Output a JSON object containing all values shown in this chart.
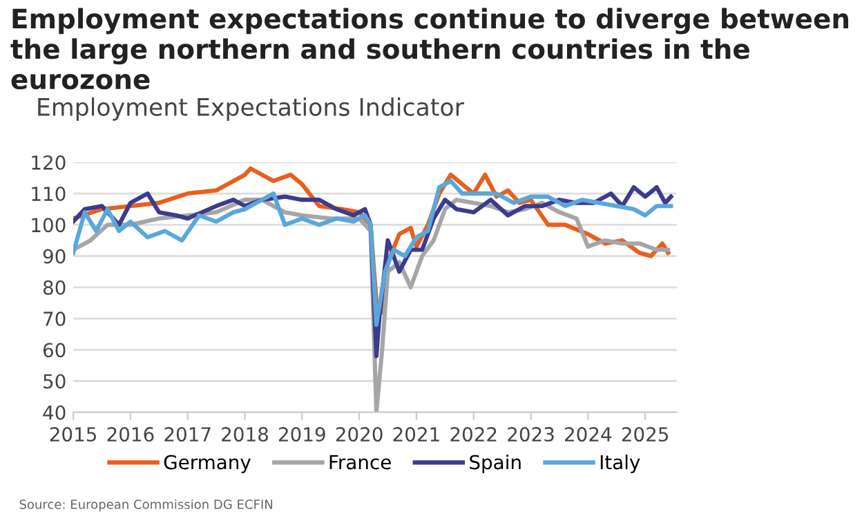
{
  "chart_data": {
    "type": "line",
    "title": "Employment expectations continue to diverge between the large northern and southern countries in the eurozone",
    "subtitle": "Employment Expectations Indicator",
    "annotations": [
      "Source: European Commission DG ECFIN"
    ],
    "xlim": [
      2015,
      2025.55
    ],
    "xticks": [
      2015,
      2016,
      2017,
      2018,
      2019,
      2020,
      2021,
      2022,
      2023,
      2024,
      2025
    ],
    "ylim": [
      40,
      120
    ],
    "yticks": [
      40,
      50,
      60,
      70,
      80,
      90,
      100,
      110,
      120
    ],
    "grid": "y",
    "legend": "bottom",
    "marker": "none",
    "line_style": "solid",
    "series": [
      {
        "name": "Germany",
        "color": "#e8601c",
        "x": [
          2015,
          2015.5,
          2016,
          2016.5,
          2017,
          2017.5,
          2018,
          2018.1,
          2018.5,
          2018.8,
          2019,
          2019.3,
          2019.7,
          2020,
          2020.2,
          2020.3,
          2020.4,
          2020.5,
          2020.7,
          2020.9,
          2021,
          2021.2,
          2021.4,
          2021.6,
          2021.8,
          2022,
          2022.2,
          2022.4,
          2022.6,
          2022.8,
          2023,
          2023.3,
          2023.6,
          2024,
          2024.3,
          2024.6,
          2024.9,
          2025.1,
          2025.3,
          2025.4
        ],
        "values": [
          102,
          105,
          106,
          107,
          110,
          111,
          116,
          118,
          114,
          116,
          113,
          106,
          105,
          104,
          100,
          75,
          72,
          88,
          97,
          99,
          93,
          100,
          110,
          116,
          113,
          110,
          116,
          109,
          111,
          107,
          108,
          100,
          100,
          97,
          94,
          95,
          91,
          90,
          94,
          91
        ]
      },
      {
        "name": "France",
        "color": "#a6a6a6",
        "x": [
          2015,
          2015.3,
          2015.6,
          2016,
          2016.5,
          2017,
          2017.5,
          2018,
          2018.3,
          2018.7,
          2019,
          2019.5,
          2020,
          2020.2,
          2020.3,
          2020.4,
          2020.5,
          2020.7,
          2020.9,
          2021.1,
          2021.3,
          2021.5,
          2021.7,
          2022,
          2022.3,
          2022.6,
          2022.9,
          2023.2,
          2023.5,
          2023.8,
          2024,
          2024.3,
          2024.6,
          2024.9,
          2025.2,
          2025.4
        ],
        "values": [
          92,
          95,
          100,
          100,
          102,
          103,
          104,
          108,
          108,
          104,
          103,
          102,
          102,
          98,
          40,
          60,
          85,
          88,
          80,
          90,
          95,
          105,
          108,
          107,
          106,
          104,
          105,
          107,
          104,
          102,
          93,
          95,
          94,
          94,
          92,
          92
        ]
      },
      {
        "name": "Spain",
        "color": "#3b3b8f",
        "x": [
          2015,
          2015.2,
          2015.5,
          2015.8,
          2016,
          2016.3,
          2016.5,
          2016.8,
          2017,
          2017.5,
          2017.8,
          2018,
          2018.3,
          2018.7,
          2019,
          2019.3,
          2019.6,
          2019.9,
          2020.1,
          2020.2,
          2020.3,
          2020.35,
          2020.5,
          2020.7,
          2020.9,
          2021.1,
          2021.3,
          2021.5,
          2021.7,
          2022,
          2022.3,
          2022.6,
          2022.9,
          2023.2,
          2023.5,
          2023.8,
          2024.1,
          2024.4,
          2024.6,
          2024.8,
          2025,
          2025.2,
          2025.35,
          2025.45
        ],
        "values": [
          101,
          105,
          106,
          100,
          107,
          110,
          104,
          103,
          102,
          106,
          108,
          106,
          108,
          109,
          108,
          108,
          105,
          103,
          105,
          100,
          58,
          70,
          95,
          85,
          92,
          92,
          102,
          108,
          105,
          104,
          108,
          103,
          106,
          106,
          108,
          107,
          107,
          110,
          106,
          112,
          109,
          112,
          107,
          109
        ]
      },
      {
        "name": "Italy",
        "color": "#5aa7dc",
        "x": [
          2015,
          2015.2,
          2015.4,
          2015.6,
          2015.8,
          2016,
          2016.3,
          2016.6,
          2016.9,
          2017.2,
          2017.5,
          2017.8,
          2018,
          2018.3,
          2018.5,
          2018.7,
          2019,
          2019.3,
          2019.6,
          2019.9,
          2020.1,
          2020.2,
          2020.3,
          2020.45,
          2020.6,
          2020.8,
          2021,
          2021.2,
          2021.4,
          2021.6,
          2021.8,
          2022.1,
          2022.4,
          2022.7,
          2023,
          2023.3,
          2023.6,
          2023.9,
          2024.2,
          2024.5,
          2024.8,
          2025,
          2025.2,
          2025.45
        ],
        "values": [
          91,
          104,
          98,
          105,
          98,
          101,
          96,
          98,
          95,
          103,
          101,
          104,
          105,
          108,
          110,
          100,
          102,
          100,
          102,
          101,
          103,
          100,
          68,
          85,
          92,
          90,
          96,
          98,
          112,
          114,
          110,
          110,
          110,
          107,
          109,
          109,
          106,
          108,
          107,
          106,
          105,
          103,
          106,
          106
        ]
      }
    ]
  }
}
